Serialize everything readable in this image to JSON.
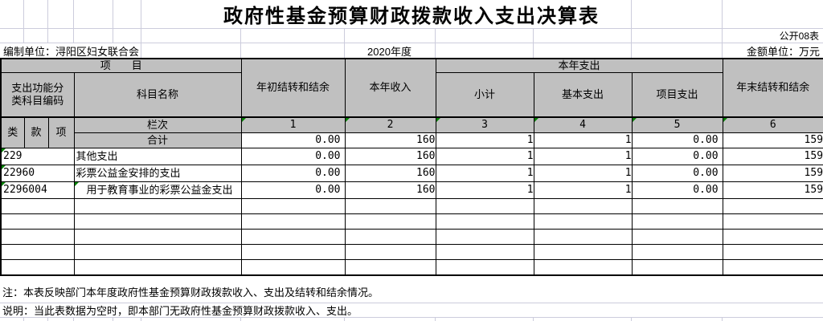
{
  "title": "政府性基金预算财政拨款收入支出决算表",
  "meta": {
    "form_code": "公开08表",
    "prepared_by": "编制单位：浔阳区妇女联合会",
    "year": "2020年度",
    "unit": "金额单位：万元"
  },
  "table": {
    "headers": {
      "project": "项　　目",
      "func_code": "支出功能分\n类科目编码",
      "subject": "科目名称",
      "begin_balance": "年初结转和结余",
      "year_income": "本年收入",
      "year_expense": "本年支出",
      "subtotal": "小计",
      "basic_expense": "基本支出",
      "project_expense": "项目支出",
      "end_balance": "年末结转和结余",
      "class": "类",
      "fund": "款",
      "item": "项",
      "col_label": "栏次",
      "col_numbers": [
        "1",
        "2",
        "3",
        "4",
        "5",
        "6"
      ]
    },
    "total_row": {
      "name": "合计",
      "values": [
        "0.00",
        "160",
        "1",
        "1",
        "0.00",
        "159"
      ]
    },
    "rows": [
      {
        "code": "229",
        "code_flag": true,
        "name": "其他支出",
        "name_flag": false,
        "values": [
          "0.00",
          "160",
          "1",
          "1",
          "0.00",
          "159"
        ]
      },
      {
        "code": "22960",
        "code_flag": true,
        "name": "彩票公益金安排的支出",
        "name_flag": false,
        "values": [
          "0.00",
          "160",
          "1",
          "1",
          "0.00",
          "159"
        ]
      },
      {
        "code": "2296004",
        "code_flag": true,
        "name": "　用于教育事业的彩票公益金支出",
        "name_flag": true,
        "values": [
          "0.00",
          "160",
          "1",
          "1",
          "0.00",
          "159"
        ]
      }
    ],
    "empty_rows": 5
  },
  "notes": {
    "note1": "注：本表反映部门本年度政府性基金预算财政拨款收入、支出及结转和结余情况。",
    "note2": "说明：当此表数据为空时，即本部门无政府性基金预算财政拨款收入、支出。"
  },
  "colors": {
    "header_bg": "#c0c0c0",
    "gridline": "#ccccdc",
    "flag_green": "#008000",
    "border": "#000000"
  }
}
